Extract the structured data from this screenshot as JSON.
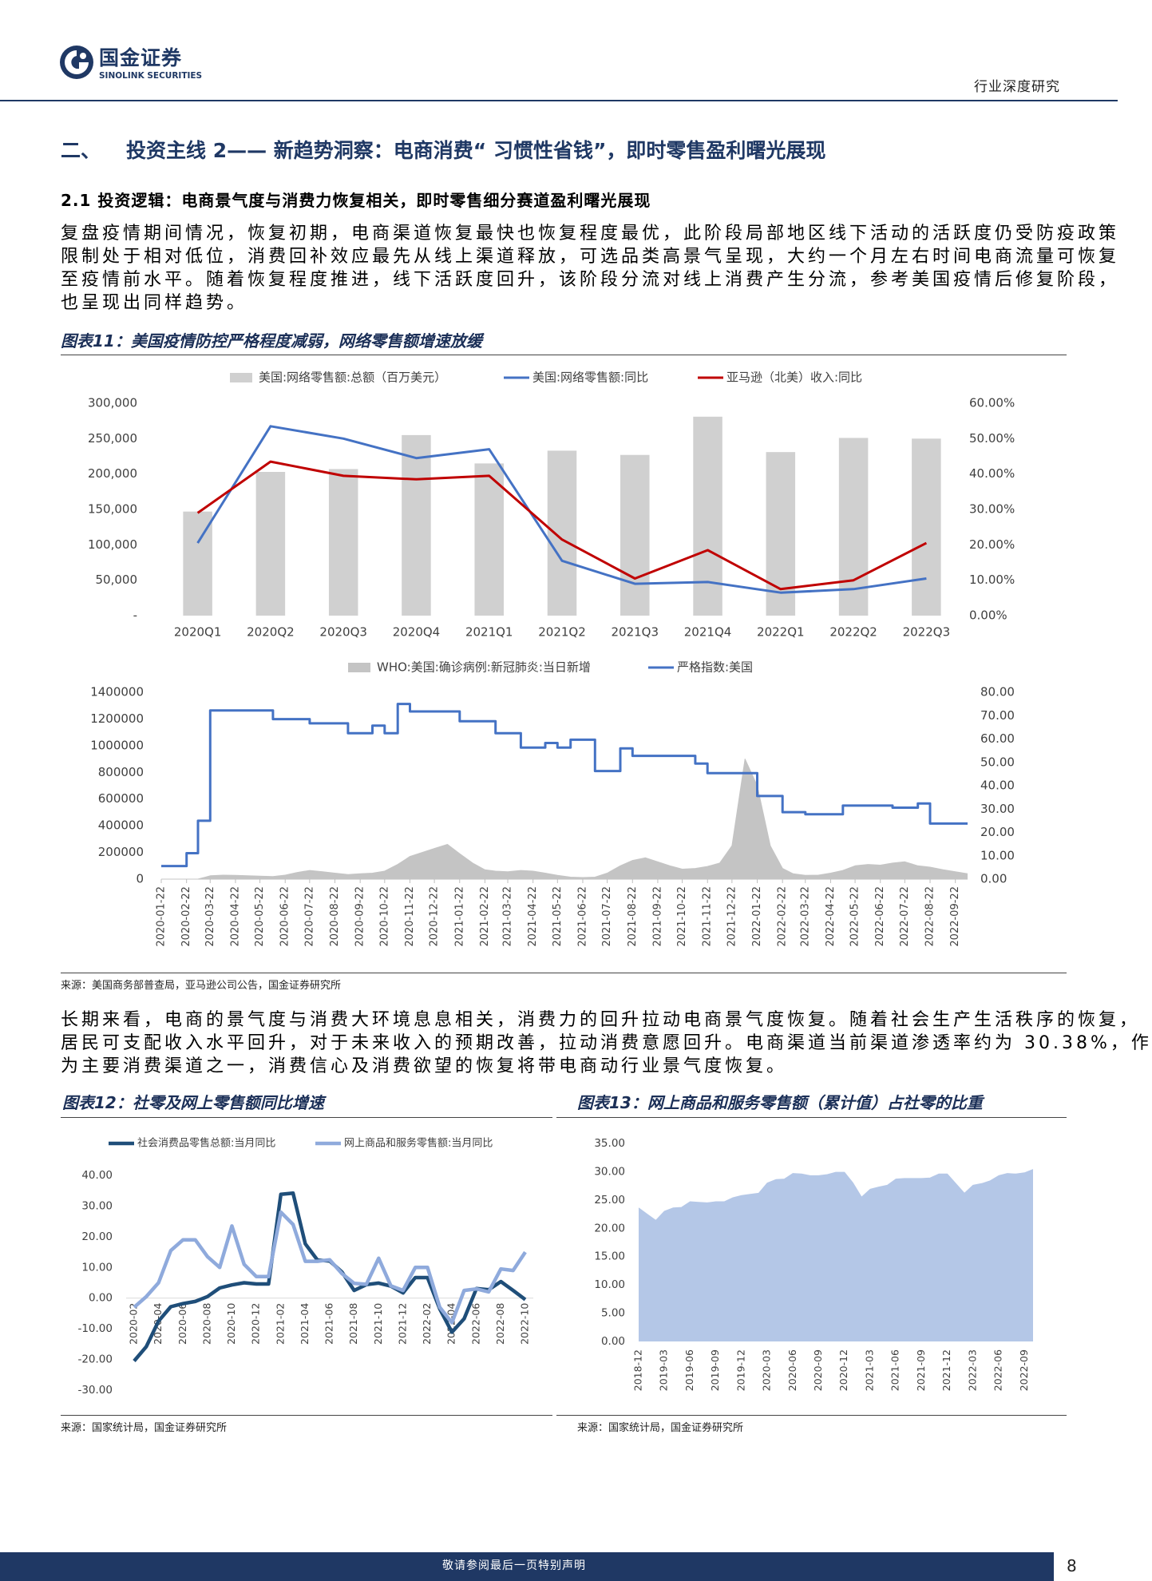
{
  "header": {
    "brand": "国金证券",
    "brand_en": "SINOLINK SECURITIES",
    "category": "行业深度研究"
  },
  "section": {
    "number": "二、",
    "title": "投资主线 2—— 新趋势洞察：电商消费“ 习惯性省钱”，即时零售盈利曙光展现"
  },
  "subsection": "2.1 投资逻辑：电商景气度与消费力恢复相关，即时零售细分赛道盈利曙光展现",
  "paragraphs": [
    [
      "复盘疫情期间情况，恢复初期，电商渠道恢复最快也恢复程度最优，此阶段局部地区线下活动的活跃度仍受防疫政策",
      "限制处于相对低位，消费回补效应最先从线上渠道释放，可选品类高景气呈现，大约一个月左右时间电商流量可恢复",
      "至疫情前水平。随着恢复程度推进，线下活跃度回升，该阶段分流对线上消费产生分流，参考美国疫情后修复阶段，",
      "也呈现出同样趋势。"
    ],
    [
      "长期来看，电商的景气度与消费大环境息息相关，消费力的回升拉动电商景气度恢复。随着社会生产生活秩序的恢复，",
      "居民可支配收入水平回升，对于未来收入的预期改善，拉动消费意愿回升。电商渠道当前渠道渗透率约为 30.38%，作",
      "为主要消费渠道之一，消费信心及消费欲望的恢复将带电商动行业景气度恢复。"
    ]
  ],
  "figures": [
    {
      "title": "图表11：美国疫情防控严格程度减弱，网络零售额增速放缓",
      "source": "来源：美国商务部普查局，亚马逊公司公告，国金证券研究所"
    },
    {
      "title": "图表12：社零及网上零售额同比增速",
      "source": "来源：国家统计局，国金证券研究所"
    },
    {
      "title": "图表13：网上商品和服务零售额（累计值）占社零的比重",
      "source": "来源：国家统计局，国金证券研究所"
    }
  ],
  "chart_data": [
    {
      "type": "bar",
      "categories": [
        "2020Q1",
        "2020Q2",
        "2020Q3",
        "2020Q4",
        "2021Q1",
        "2021Q2",
        "2021Q3",
        "2021Q4",
        "2022Q1",
        "2022Q2",
        "2022Q3"
      ],
      "series": [
        {
          "name": "美国:网络零售额:总额（百万美元）",
          "type": "bar",
          "color": "#d0d0d0",
          "values": [
            147000,
            203000,
            207000,
            255000,
            215000,
            233000,
            227000,
            281000,
            231000,
            251000,
            250000
          ]
        },
        {
          "name": "美国:网络零售额:同比",
          "type": "line",
          "axis": "y2",
          "color": "#4472c4",
          "values": [
            20.5,
            53.5,
            50,
            44.5,
            47,
            15.5,
            9,
            9.5,
            6.5,
            7.5,
            10.5
          ]
        },
        {
          "name": "亚马逊（北美）收入:同比",
          "type": "line",
          "axis": "y2",
          "color": "#c00000",
          "values": [
            29,
            43.5,
            39.5,
            38.5,
            39.5,
            21.5,
            10.5,
            18.5,
            7.5,
            10,
            20.5
          ]
        }
      ],
      "ylim": [
        0,
        300000
      ],
      "yticks": [
        {
          "value": 0,
          "label": "-"
        },
        {
          "value": 50000,
          "label": "50,000"
        },
        {
          "value": 100000,
          "label": "100,000"
        },
        {
          "value": 150000,
          "label": "150,000"
        },
        {
          "value": 200000,
          "label": "200,000"
        },
        {
          "value": 250000,
          "label": "250,000"
        },
        {
          "value": 300000,
          "label": "300,000"
        }
      ],
      "y2lim": [
        0,
        60
      ],
      "y2ticks": [
        {
          "value": 0,
          "label": "0.00%"
        },
        {
          "value": 10,
          "label": "10.00%"
        },
        {
          "value": 20,
          "label": "20.00%"
        },
        {
          "value": 30,
          "label": "30.00%"
        },
        {
          "value": 40,
          "label": "40.00%"
        },
        {
          "value": 50,
          "label": "50.00%"
        },
        {
          "value": 60,
          "label": "60.00%"
        }
      ],
      "legend": "top"
    },
    {
      "type": "area",
      "x": [
        "2020-01-22",
        "2020-02-07",
        "2020-02-22",
        "2020-03-07",
        "2020-03-22",
        "2020-04-07",
        "2020-04-22",
        "2020-05-07",
        "2020-05-22",
        "2020-06-07",
        "2020-06-22",
        "2020-07-07",
        "2020-07-22",
        "2020-08-07",
        "2020-08-22",
        "2020-09-07",
        "2020-09-22",
        "2020-10-07",
        "2020-10-22",
        "2020-11-07",
        "2020-11-22",
        "2020-12-07",
        "2020-12-22",
        "2021-01-07",
        "2021-01-22",
        "2021-02-07",
        "2021-02-22",
        "2021-03-07",
        "2021-03-22",
        "2021-04-07",
        "2021-04-22",
        "2021-05-07",
        "2021-05-22",
        "2021-06-07",
        "2021-06-22",
        "2021-07-07",
        "2021-07-22",
        "2021-08-07",
        "2021-08-22",
        "2021-09-07",
        "2021-09-22",
        "2021-10-07",
        "2021-10-22",
        "2021-11-07",
        "2021-11-22",
        "2021-12-07",
        "2021-12-22",
        "2022-01-07",
        "2022-01-22",
        "2022-02-07",
        "2022-02-22",
        "2022-03-07",
        "2022-03-22",
        "2022-04-07",
        "2022-04-22",
        "2022-05-07",
        "2022-05-22",
        "2022-06-07",
        "2022-06-22",
        "2022-07-07",
        "2022-07-22",
        "2022-08-07",
        "2022-08-22",
        "2022-09-07",
        "2022-09-22",
        "2022-10-07"
      ],
      "xlim": [
        "2020-01-22",
        "2022-10-07"
      ],
      "xticks": [
        "2020-01-22",
        "2020-02-22",
        "2020-03-22",
        "2020-04-22",
        "2020-05-22",
        "2020-06-22",
        "2020-07-22",
        "2020-08-22",
        "2020-09-22",
        "2020-10-22",
        "2020-11-22",
        "2020-12-22",
        "2021-01-22",
        "2021-02-22",
        "2021-03-22",
        "2021-04-22",
        "2021-05-22",
        "2021-06-22",
        "2021-07-22",
        "2021-08-22",
        "2021-09-22",
        "2021-10-22",
        "2021-11-22",
        "2021-12-22",
        "2022-01-22",
        "2022-02-22",
        "2022-03-22",
        "2022-04-22",
        "2022-05-22",
        "2022-06-22",
        "2022-07-22",
        "2022-08-22",
        "2022-09-22"
      ],
      "series": [
        {
          "name": "WHO:美国:确诊病例:新冠肺炎:当日新增",
          "type": "area",
          "color": "#c4c4c4",
          "values": [
            0,
            0,
            0,
            100,
            25000,
            30000,
            28000,
            25000,
            22000,
            20000,
            30000,
            50000,
            65000,
            55000,
            45000,
            35000,
            40000,
            45000,
            60000,
            110000,
            170000,
            200000,
            230000,
            260000,
            190000,
            120000,
            70000,
            60000,
            55000,
            65000,
            60000,
            45000,
            28000,
            15000,
            12000,
            15000,
            45000,
            100000,
            140000,
            160000,
            130000,
            100000,
            75000,
            80000,
            95000,
            120000,
            250000,
            900000,
            700000,
            250000,
            80000,
            40000,
            28000,
            30000,
            45000,
            65000,
            100000,
            110000,
            105000,
            120000,
            130000,
            100000,
            90000,
            70000,
            55000,
            40000
          ]
        },
        {
          "name": "严格指数:美国",
          "type": "line",
          "step": true,
          "axis": "y2",
          "color": "#4472c4",
          "values": [
            5.6,
            5.6,
            11.1,
            25,
            72.2,
            72.2,
            72.2,
            72.2,
            72.2,
            68.5,
            68.5,
            68.5,
            66.7,
            66.7,
            66.7,
            62.5,
            62.5,
            65.7,
            62.5,
            75,
            71.8,
            71.8,
            71.8,
            71.8,
            67.6,
            67.6,
            67.6,
            62.5,
            62.5,
            56.3,
            56.3,
            58.3,
            56.3,
            59.7,
            59.7,
            46.3,
            46.3,
            56,
            52.8,
            52.8,
            52.8,
            52.8,
            52.8,
            49.5,
            45.4,
            45.4,
            45.4,
            45.4,
            35.6,
            35.6,
            28.7,
            28.7,
            27.8,
            27.8,
            27.8,
            31.5,
            31.5,
            31.5,
            31.5,
            30.6,
            30.6,
            32.4,
            23.8,
            23.8,
            23.8,
            23.8
          ]
        }
      ],
      "ylim": [
        0,
        1400000
      ],
      "yticks": [
        0,
        200000,
        400000,
        600000,
        800000,
        1000000,
        1200000,
        1400000
      ],
      "y2lim": [
        0,
        80
      ],
      "y2ticks": [
        {
          "value": 0,
          "label": "0.00"
        },
        {
          "value": 10,
          "label": "10.00"
        },
        {
          "value": 20,
          "label": "20.00"
        },
        {
          "value": 30,
          "label": "30.00"
        },
        {
          "value": 40,
          "label": "40.00"
        },
        {
          "value": 50,
          "label": "50.00"
        },
        {
          "value": 60,
          "label": "60.00"
        },
        {
          "value": 70,
          "label": "70.00"
        },
        {
          "value": 80,
          "label": "80.00"
        }
      ],
      "legend": "top"
    },
    {
      "type": "line",
      "categories": [
        "2020-02",
        null,
        "2020-04",
        null,
        "2020-06",
        null,
        "2020-08",
        null,
        "2020-10",
        null,
        "2020-12",
        null,
        "2021-02",
        null,
        "2021-04",
        null,
        "2021-06",
        null,
        "2021-08",
        null,
        "2021-10",
        null,
        "2021-12",
        null,
        "2022-02",
        null,
        "2022-04",
        null,
        "2022-06",
        null,
        "2022-08",
        null,
        "2022-10"
      ],
      "series": [
        {
          "name": "社会消费品零售总额:当月同比",
          "color": "#1f4e79",
          "values": [
            -20.5,
            -15.8,
            -7.5,
            -2.8,
            -1.8,
            -1.1,
            0.5,
            3.3,
            4.3,
            5,
            4.6,
            4.6,
            33.8,
            34.2,
            17.7,
            12.4,
            12.1,
            8.5,
            2.5,
            4.4,
            4.9,
            3.9,
            1.7,
            6.7,
            6.7,
            -3.5,
            -11.1,
            -6.7,
            3.1,
            2.7,
            5.4,
            2.5,
            -0.5
          ]
        },
        {
          "name": "网上商品和服务零售额:当月同比",
          "color": "#8faadc",
          "values": [
            -3,
            0.5,
            5,
            15.5,
            19,
            19,
            13.5,
            10,
            23.5,
            11,
            7,
            7,
            28,
            24,
            12,
            12,
            12.5,
            8,
            4.8,
            4.5,
            13,
            4,
            2.5,
            10,
            10,
            -3,
            -8,
            2.5,
            3,
            2,
            9.5,
            9,
            15
          ]
        }
      ],
      "ylim": [
        -30,
        40
      ],
      "yticks": [
        {
          "value": -30,
          "label": "-30.00"
        },
        {
          "value": -20,
          "label": "-20.00"
        },
        {
          "value": -10,
          "label": "-10.00"
        },
        {
          "value": 0,
          "label": "0.00"
        },
        {
          "value": 10,
          "label": "10.00"
        },
        {
          "value": 20,
          "label": "20.00"
        },
        {
          "value": 30,
          "label": "30.00"
        },
        {
          "value": 40,
          "label": "40.00"
        }
      ],
      "legend": "top"
    },
    {
      "type": "area",
      "categories": [
        "2018-12",
        null,
        null,
        "2019-03",
        null,
        null,
        "2019-06",
        null,
        null,
        "2019-09",
        null,
        null,
        "2019-12",
        null,
        null,
        "2020-03",
        null,
        null,
        "2020-06",
        null,
        null,
        "2020-09",
        null,
        null,
        "2020-12",
        null,
        null,
        "2021-03",
        null,
        null,
        "2021-06",
        null,
        null,
        "2021-09",
        null,
        null,
        "2021-12",
        null,
        null,
        "2022-03",
        null,
        null,
        "2022-06",
        null,
        null,
        "2022-09",
        null
      ],
      "series": [
        {
          "color": "#b4c7e7",
          "values": [
            23.6,
            22.5,
            21.4,
            23,
            23.6,
            23.7,
            24.7,
            24.6,
            24.5,
            24.7,
            24.7,
            25.4,
            25.8,
            26,
            26.2,
            28,
            28.6,
            28.7,
            29.7,
            29.6,
            29.3,
            29.3,
            29.5,
            29.9,
            29.9,
            28,
            25.5,
            26.9,
            27.3,
            27.6,
            28.7,
            28.8,
            28.8,
            28.8,
            28.9,
            29.6,
            29.6,
            27.9,
            26.2,
            27.6,
            27.9,
            28.4,
            29.3,
            29.7,
            29.6,
            29.8,
            30.4
          ]
        }
      ],
      "ylim": [
        0,
        35
      ],
      "yticks": [
        {
          "value": 0,
          "label": "0.00"
        },
        {
          "value": 5,
          "label": "5.00"
        },
        {
          "value": 10,
          "label": "10.00"
        },
        {
          "value": 15,
          "label": "15.00"
        },
        {
          "value": 20,
          "label": "20.00"
        },
        {
          "value": 25,
          "label": "25.00"
        },
        {
          "value": 30,
          "label": "30.00"
        },
        {
          "value": 35,
          "label": "35.00"
        }
      ]
    }
  ],
  "footer": {
    "disclaimer": "敬请参阅最后一页特别声明",
    "page": "8"
  }
}
